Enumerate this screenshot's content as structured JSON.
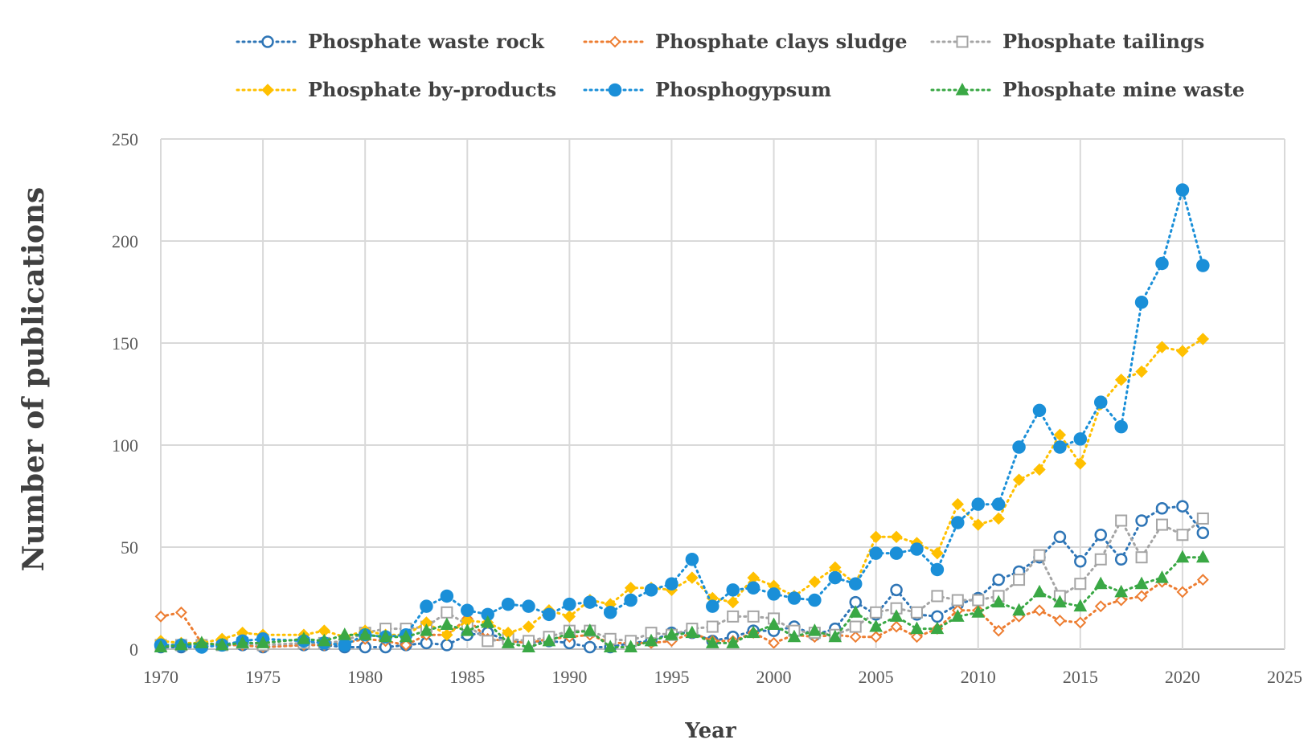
{
  "chart_data": {
    "type": "line",
    "title": "",
    "xlabel": "Year",
    "ylabel": "Number of publications",
    "xlim": [
      1970,
      2025
    ],
    "ylim": [
      0,
      250
    ],
    "xticks": [
      1970,
      1975,
      1980,
      1985,
      1990,
      1995,
      2000,
      2005,
      2010,
      2015,
      2020,
      2025
    ],
    "yticks": [
      0,
      50,
      100,
      150,
      200,
      250
    ],
    "grid": true,
    "legend_position": "top",
    "series": [
      {
        "name": "Phosphate waste rock",
        "color": "#2E75B6",
        "marker": "circle-open",
        "points": [
          [
            1970,
            1
          ],
          [
            1971,
            1
          ],
          [
            1972,
            1
          ],
          [
            1973,
            2
          ],
          [
            1974,
            2
          ],
          [
            1975,
            1
          ],
          [
            1977,
            2
          ],
          [
            1978,
            2
          ],
          [
            1979,
            1
          ],
          [
            1980,
            1
          ],
          [
            1981,
            1
          ],
          [
            1982,
            2
          ],
          [
            1983,
            3
          ],
          [
            1984,
            2
          ],
          [
            1985,
            7
          ],
          [
            1986,
            8
          ],
          [
            1987,
            4
          ],
          [
            1988,
            3
          ],
          [
            1989,
            4
          ],
          [
            1990,
            3
          ],
          [
            1991,
            1
          ],
          [
            1992,
            1
          ],
          [
            1993,
            3
          ],
          [
            1994,
            4
          ],
          [
            1995,
            8
          ],
          [
            1996,
            8
          ],
          [
            1997,
            4
          ],
          [
            1998,
            6
          ],
          [
            1999,
            9
          ],
          [
            2000,
            9
          ],
          [
            2001,
            11
          ],
          [
            2002,
            7
          ],
          [
            2003,
            10
          ],
          [
            2004,
            23
          ],
          [
            2005,
            17
          ],
          [
            2006,
            29
          ],
          [
            2007,
            17
          ],
          [
            2008,
            16
          ],
          [
            2009,
            22
          ],
          [
            2010,
            25
          ],
          [
            2011,
            34
          ],
          [
            2012,
            38
          ],
          [
            2013,
            45
          ],
          [
            2014,
            55
          ],
          [
            2015,
            43
          ],
          [
            2016,
            56
          ],
          [
            2017,
            44
          ],
          [
            2018,
            63
          ],
          [
            2019,
            69
          ],
          [
            2020,
            70
          ],
          [
            2021,
            57
          ]
        ]
      },
      {
        "name": "Phosphate clays sludge",
        "color": "#ED7D31",
        "marker": "diamond-open",
        "points": [
          [
            1970,
            16
          ],
          [
            1971,
            18
          ],
          [
            1972,
            3
          ],
          [
            1973,
            2
          ],
          [
            1974,
            2
          ],
          [
            1975,
            1
          ],
          [
            1977,
            2
          ],
          [
            1978,
            2
          ],
          [
            1979,
            3
          ],
          [
            1980,
            5
          ],
          [
            1981,
            4
          ],
          [
            1982,
            2
          ],
          [
            1983,
            7
          ],
          [
            1984,
            7
          ],
          [
            1985,
            15
          ],
          [
            1986,
            5
          ],
          [
            1987,
            4
          ],
          [
            1988,
            3
          ],
          [
            1989,
            5
          ],
          [
            1990,
            6
          ],
          [
            1991,
            7
          ],
          [
            1992,
            3
          ],
          [
            1993,
            3
          ],
          [
            1994,
            3
          ],
          [
            1995,
            4
          ],
          [
            1996,
            8
          ],
          [
            1997,
            4
          ],
          [
            1998,
            4
          ],
          [
            1999,
            8
          ],
          [
            2000,
            3
          ],
          [
            2001,
            7
          ],
          [
            2002,
            6
          ],
          [
            2003,
            7
          ],
          [
            2004,
            6
          ],
          [
            2005,
            6
          ],
          [
            2006,
            11
          ],
          [
            2007,
            6
          ],
          [
            2008,
            10
          ],
          [
            2009,
            19
          ],
          [
            2010,
            19
          ],
          [
            2011,
            9
          ],
          [
            2012,
            16
          ],
          [
            2013,
            19
          ],
          [
            2014,
            14
          ],
          [
            2015,
            13
          ],
          [
            2016,
            21
          ],
          [
            2017,
            24
          ],
          [
            2018,
            26
          ],
          [
            2019,
            33
          ],
          [
            2020,
            28
          ],
          [
            2021,
            34
          ]
        ]
      },
      {
        "name": "Phosphate tailings",
        "color": "#A5A5A5",
        "marker": "square-open",
        "points": [
          [
            1970,
            2
          ],
          [
            1971,
            2
          ],
          [
            1972,
            2
          ],
          [
            1973,
            2
          ],
          [
            1974,
            3
          ],
          [
            1975,
            2
          ],
          [
            1977,
            3
          ],
          [
            1978,
            3
          ],
          [
            1979,
            4
          ],
          [
            1980,
            8
          ],
          [
            1981,
            10
          ],
          [
            1982,
            10
          ],
          [
            1983,
            11
          ],
          [
            1984,
            18
          ],
          [
            1985,
            12
          ],
          [
            1986,
            4
          ],
          [
            1987,
            5
          ],
          [
            1988,
            4
          ],
          [
            1989,
            6
          ],
          [
            1990,
            9
          ],
          [
            1991,
            9
          ],
          [
            1992,
            5
          ],
          [
            1993,
            4
          ],
          [
            1994,
            8
          ],
          [
            1995,
            7
          ],
          [
            1996,
            10
          ],
          [
            1997,
            11
          ],
          [
            1998,
            16
          ],
          [
            1999,
            16
          ],
          [
            2000,
            15
          ],
          [
            2001,
            9
          ],
          [
            2002,
            8
          ],
          [
            2003,
            7
          ],
          [
            2004,
            11
          ],
          [
            2005,
            18
          ],
          [
            2006,
            20
          ],
          [
            2007,
            18
          ],
          [
            2008,
            26
          ],
          [
            2009,
            24
          ],
          [
            2010,
            24
          ],
          [
            2011,
            26
          ],
          [
            2012,
            34
          ],
          [
            2013,
            46
          ],
          [
            2014,
            26
          ],
          [
            2015,
            32
          ],
          [
            2016,
            44
          ],
          [
            2017,
            63
          ],
          [
            2018,
            45
          ],
          [
            2019,
            61
          ],
          [
            2020,
            56
          ],
          [
            2021,
            64
          ]
        ]
      },
      {
        "name": "Phosphate by-products",
        "color": "#FFC000",
        "marker": "diamond",
        "points": [
          [
            1970,
            4
          ],
          [
            1971,
            3
          ],
          [
            1972,
            3
          ],
          [
            1973,
            5
          ],
          [
            1974,
            8
          ],
          [
            1975,
            7
          ],
          [
            1977,
            7
          ],
          [
            1978,
            9
          ],
          [
            1979,
            6
          ],
          [
            1980,
            9
          ],
          [
            1981,
            7
          ],
          [
            1982,
            7
          ],
          [
            1983,
            13
          ],
          [
            1984,
            7
          ],
          [
            1985,
            14
          ],
          [
            1986,
            13
          ],
          [
            1987,
            8
          ],
          [
            1988,
            11
          ],
          [
            1989,
            19
          ],
          [
            1990,
            16
          ],
          [
            1991,
            24
          ],
          [
            1992,
            22
          ],
          [
            1993,
            30
          ],
          [
            1994,
            30
          ],
          [
            1995,
            29
          ],
          [
            1996,
            35
          ],
          [
            1997,
            25
          ],
          [
            1998,
            23
          ],
          [
            1999,
            35
          ],
          [
            2000,
            31
          ],
          [
            2001,
            26
          ],
          [
            2002,
            33
          ],
          [
            2003,
            40
          ],
          [
            2004,
            32
          ],
          [
            2005,
            55
          ],
          [
            2006,
            55
          ],
          [
            2007,
            52
          ],
          [
            2008,
            47
          ],
          [
            2009,
            71
          ],
          [
            2010,
            61
          ],
          [
            2011,
            64
          ],
          [
            2012,
            83
          ],
          [
            2013,
            88
          ],
          [
            2014,
            105
          ],
          [
            2015,
            91
          ],
          [
            2016,
            120
          ],
          [
            2017,
            132
          ],
          [
            2018,
            136
          ],
          [
            2019,
            148
          ],
          [
            2020,
            146
          ],
          [
            2021,
            152
          ]
        ]
      },
      {
        "name": "Phosphogypsum",
        "color": "#1A8FD8",
        "marker": "circle",
        "points": [
          [
            1970,
            2
          ],
          [
            1971,
            2
          ],
          [
            1972,
            1
          ],
          [
            1973,
            2
          ],
          [
            1974,
            4
          ],
          [
            1975,
            5
          ],
          [
            1977,
            4
          ],
          [
            1978,
            3
          ],
          [
            1979,
            2
          ],
          [
            1980,
            7
          ],
          [
            1981,
            6
          ],
          [
            1982,
            7
          ],
          [
            1983,
            21
          ],
          [
            1984,
            26
          ],
          [
            1985,
            19
          ],
          [
            1986,
            17
          ],
          [
            1987,
            22
          ],
          [
            1988,
            21
          ],
          [
            1989,
            17
          ],
          [
            1990,
            22
          ],
          [
            1991,
            23
          ],
          [
            1992,
            18
          ],
          [
            1993,
            24
          ],
          [
            1994,
            29
          ],
          [
            1995,
            32
          ],
          [
            1996,
            44
          ],
          [
            1997,
            21
          ],
          [
            1998,
            29
          ],
          [
            1999,
            30
          ],
          [
            2000,
            27
          ],
          [
            2001,
            25
          ],
          [
            2002,
            24
          ],
          [
            2003,
            35
          ],
          [
            2004,
            32
          ],
          [
            2005,
            47
          ],
          [
            2006,
            47
          ],
          [
            2007,
            49
          ],
          [
            2008,
            39
          ],
          [
            2009,
            62
          ],
          [
            2010,
            71
          ],
          [
            2011,
            71
          ],
          [
            2012,
            99
          ],
          [
            2013,
            117
          ],
          [
            2014,
            99
          ],
          [
            2015,
            103
          ],
          [
            2016,
            121
          ],
          [
            2017,
            109
          ],
          [
            2018,
            170
          ],
          [
            2019,
            189
          ],
          [
            2020,
            225
          ],
          [
            2021,
            188
          ]
        ]
      },
      {
        "name": "Phosphate mine waste",
        "color": "#3AA845",
        "marker": "triangle",
        "points": [
          [
            1970,
            1
          ],
          [
            1971,
            2
          ],
          [
            1972,
            3
          ],
          [
            1973,
            2
          ],
          [
            1974,
            3
          ],
          [
            1975,
            3
          ],
          [
            1977,
            5
          ],
          [
            1978,
            4
          ],
          [
            1979,
            7
          ],
          [
            1980,
            7
          ],
          [
            1981,
            6
          ],
          [
            1982,
            6
          ],
          [
            1983,
            9
          ],
          [
            1984,
            12
          ],
          [
            1985,
            9
          ],
          [
            1986,
            13
          ],
          [
            1987,
            3
          ],
          [
            1988,
            1
          ],
          [
            1989,
            4
          ],
          [
            1990,
            8
          ],
          [
            1991,
            9
          ],
          [
            1992,
            1
          ],
          [
            1993,
            1
          ],
          [
            1994,
            4
          ],
          [
            1995,
            7
          ],
          [
            1996,
            8
          ],
          [
            1997,
            3
          ],
          [
            1998,
            3
          ],
          [
            1999,
            8
          ],
          [
            2000,
            12
          ],
          [
            2001,
            6
          ],
          [
            2002,
            9
          ],
          [
            2003,
            6
          ],
          [
            2004,
            18
          ],
          [
            2005,
            11
          ],
          [
            2006,
            16
          ],
          [
            2007,
            10
          ],
          [
            2008,
            10
          ],
          [
            2009,
            16
          ],
          [
            2010,
            18
          ],
          [
            2011,
            23
          ],
          [
            2012,
            19
          ],
          [
            2013,
            28
          ],
          [
            2014,
            23
          ],
          [
            2015,
            21
          ],
          [
            2016,
            32
          ],
          [
            2017,
            28
          ],
          [
            2018,
            32
          ],
          [
            2019,
            35
          ],
          [
            2020,
            45
          ],
          [
            2021,
            45
          ]
        ]
      }
    ]
  }
}
